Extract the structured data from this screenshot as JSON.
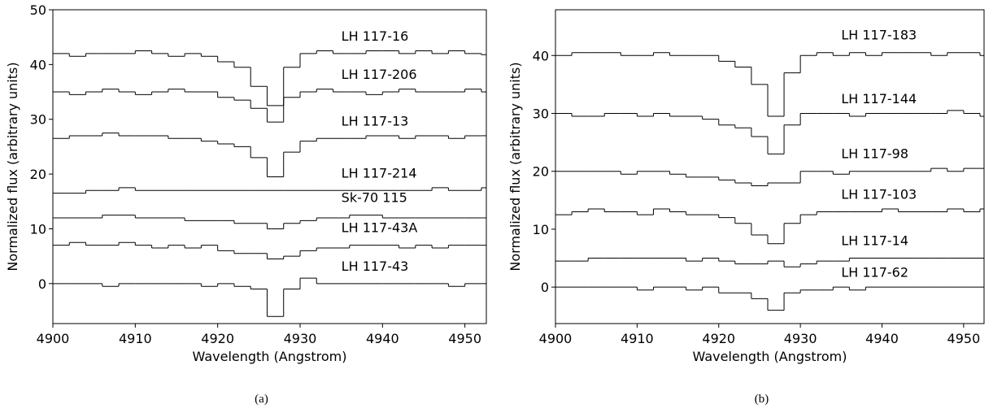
{
  "chart_data": [
    {
      "type": "line",
      "drawstyle": "steps-post",
      "caption": "(a)",
      "x_label": "Wavelength (Angstrom)",
      "y_label": "Normalized flux (arbitrary units)",
      "xlim": [
        4900,
        4952.6
      ],
      "ylim": [
        -7.3,
        50
      ],
      "xticks": [
        4900,
        4910,
        4920,
        4930,
        4940,
        4950
      ],
      "yticks": [
        0,
        10,
        20,
        30,
        40,
        50
      ],
      "x": [
        4900,
        4902,
        4904,
        4906,
        4908,
        4910,
        4912,
        4914,
        4916,
        4918,
        4920,
        4922,
        4924,
        4926,
        4928,
        4930,
        4932,
        4934,
        4936,
        4938,
        4940,
        4942,
        4944,
        4946,
        4948,
        4950,
        4952
      ],
      "series": [
        {
          "name": "LH 117-16",
          "color": "#000000",
          "values": [
            42,
            41.5,
            42,
            42,
            42,
            42.5,
            42,
            41.5,
            42,
            41.5,
            40.5,
            39.5,
            36,
            32.5,
            39.5,
            42,
            42.5,
            42,
            42,
            42.5,
            42.5,
            42,
            42.5,
            42,
            42.5,
            42,
            41.8
          ]
        },
        {
          "name": "LH 117-206",
          "color": "#000000",
          "values": [
            35,
            34.5,
            35,
            35.5,
            35,
            34.5,
            35,
            35.5,
            35,
            35,
            34,
            33.5,
            32,
            29.5,
            34,
            35,
            35.5,
            35,
            35,
            34.5,
            35,
            35.5,
            35,
            35,
            35,
            35.5,
            35
          ]
        },
        {
          "name": "LH 117-13",
          "color": "#000000",
          "values": [
            26.5,
            27,
            27,
            27.5,
            27,
            27,
            27,
            26.5,
            26.5,
            26,
            25.5,
            25,
            23,
            19.5,
            24,
            26,
            26.5,
            26.5,
            26.5,
            27,
            27,
            26.5,
            27,
            27,
            26.5,
            27,
            27
          ]
        },
        {
          "name": "LH 117-214",
          "color": "#000000",
          "values": [
            16.5,
            16.5,
            17,
            17,
            17.5,
            17,
            17,
            17,
            17,
            17,
            17,
            17,
            17,
            17,
            17,
            17,
            17,
            17,
            17,
            17,
            17,
            17,
            17,
            17.5,
            17,
            17,
            17.5
          ]
        },
        {
          "name": "Sk-70 115",
          "color": "#000000",
          "values": [
            12,
            12,
            12,
            12.5,
            12.5,
            12,
            12,
            12,
            11.5,
            11.5,
            11.5,
            11,
            11,
            10,
            11,
            11.5,
            12,
            12,
            12.5,
            12.5,
            12,
            12,
            12,
            12,
            12,
            12,
            12
          ]
        },
        {
          "name": "LH 117-43A",
          "color": "#000000",
          "values": [
            7,
            7.5,
            7,
            7,
            7.5,
            7,
            6.5,
            7,
            6.5,
            7,
            6,
            5.5,
            5.5,
            4.5,
            5,
            6,
            6.5,
            6.5,
            7,
            7,
            7,
            6.5,
            7,
            6.5,
            7,
            7,
            7
          ]
        },
        {
          "name": "LH 117-43",
          "color": "#000000",
          "values": [
            0,
            0,
            0,
            -0.5,
            0,
            0,
            0,
            0,
            0,
            -0.5,
            0,
            -0.5,
            -1,
            -6,
            -1,
            1,
            0,
            0,
            0,
            0,
            0,
            0,
            0,
            0,
            -0.5,
            0,
            0
          ]
        }
      ]
    },
    {
      "type": "line",
      "drawstyle": "steps-post",
      "caption": "(b)",
      "x_label": "Wavelength (Angstrom)",
      "y_label": "Normalized flux (arbitrary units)",
      "xlim": [
        4900,
        4952.5
      ],
      "ylim": [
        -6.3,
        47.9
      ],
      "xticks": [
        4900,
        4910,
        4920,
        4930,
        4940,
        4950
      ],
      "yticks": [
        0,
        10,
        20,
        30,
        40
      ],
      "x": [
        4900,
        4902,
        4904,
        4906,
        4908,
        4910,
        4912,
        4914,
        4916,
        4918,
        4920,
        4922,
        4924,
        4926,
        4928,
        4930,
        4932,
        4934,
        4936,
        4938,
        4940,
        4942,
        4944,
        4946,
        4948,
        4950,
        4952
      ],
      "series": [
        {
          "name": "LH 117-183",
          "color": "#000000",
          "values": [
            40,
            40.5,
            40.5,
            40.5,
            40,
            40,
            40.5,
            40,
            40,
            40,
            39,
            38,
            35,
            29.5,
            37,
            40,
            40.5,
            40,
            40.5,
            40,
            40.5,
            40.5,
            40.5,
            40,
            40.5,
            40.5,
            40
          ]
        },
        {
          "name": "LH 117-144",
          "color": "#000000",
          "values": [
            30,
            29.5,
            29.5,
            30,
            30,
            29.5,
            30,
            29.5,
            29.5,
            29,
            28,
            27.5,
            26,
            23,
            28,
            30,
            30,
            30,
            29.5,
            30,
            30,
            30,
            30,
            30,
            30.5,
            30,
            29.5
          ]
        },
        {
          "name": "LH 117-98",
          "color": "#000000",
          "values": [
            20,
            20,
            20,
            20,
            19.5,
            20,
            20,
            19.5,
            19,
            19,
            18.5,
            18,
            17.5,
            18,
            18,
            20,
            20,
            19.5,
            20,
            20,
            20,
            20,
            20,
            20.5,
            20,
            20.5,
            20.5
          ]
        },
        {
          "name": "LH 117-103",
          "color": "#000000",
          "values": [
            12.5,
            13,
            13.5,
            13,
            13,
            12.5,
            13.5,
            13,
            12.5,
            12.5,
            12,
            11,
            9,
            7.5,
            11,
            12.5,
            13,
            13,
            13,
            13,
            13.5,
            13,
            13,
            13,
            13.5,
            13,
            13.5
          ]
        },
        {
          "name": "LH 117-14",
          "color": "#000000",
          "values": [
            4.5,
            4.5,
            5,
            5,
            5,
            5,
            5,
            5,
            4.5,
            5,
            4.5,
            4,
            4,
            4.5,
            3.5,
            4,
            4.5,
            4.5,
            5,
            5,
            5,
            5,
            5,
            5,
            5,
            5,
            5
          ]
        },
        {
          "name": "LH 117-62",
          "color": "#000000",
          "values": [
            0,
            0,
            0,
            0,
            0,
            -0.5,
            0,
            0,
            -0.5,
            0,
            -1,
            -1,
            -2,
            -4,
            -1,
            -0.5,
            -0.5,
            0,
            -0.5,
            0,
            0,
            0,
            0,
            0,
            0,
            0,
            0
          ]
        }
      ]
    }
  ]
}
